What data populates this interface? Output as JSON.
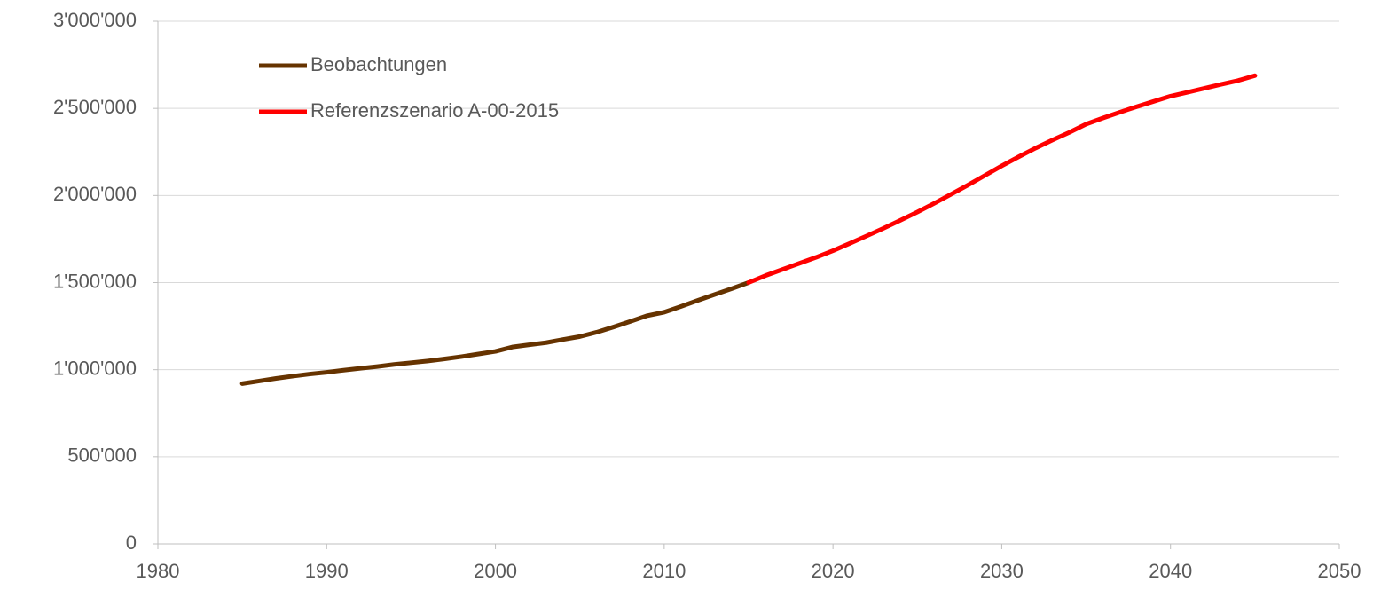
{
  "chart_data": {
    "type": "line",
    "series": [
      {
        "name": "Beobachtungen",
        "color": "#663300",
        "x": [
          1985,
          1986,
          1987,
          1988,
          1989,
          1990,
          1991,
          1992,
          1993,
          1994,
          1995,
          1996,
          1997,
          1998,
          1999,
          2000,
          2001,
          2002,
          2003,
          2004,
          2005,
          2006,
          2007,
          2008,
          2009,
          2010,
          2011,
          2012,
          2013,
          2014,
          2015
        ],
        "values": [
          920000,
          935000,
          950000,
          963000,
          975000,
          985000,
          997000,
          1008000,
          1018000,
          1030000,
          1040000,
          1050000,
          1062000,
          1075000,
          1090000,
          1105000,
          1130000,
          1143000,
          1155000,
          1173000,
          1190000,
          1215000,
          1245000,
          1277000,
          1310000,
          1330000,
          1363000,
          1398000,
          1432000,
          1465000,
          1500000
        ]
      },
      {
        "name": "Referenzszenario A-00-2015",
        "color": "#ff0000",
        "x": [
          2015,
          2016,
          2017,
          2018,
          2019,
          2020,
          2021,
          2022,
          2023,
          2024,
          2025,
          2026,
          2027,
          2028,
          2029,
          2030,
          2031,
          2032,
          2033,
          2034,
          2035,
          2036,
          2037,
          2038,
          2039,
          2040,
          2041,
          2042,
          2043,
          2044,
          2045
        ],
        "values": [
          1500000,
          1540000,
          1575000,
          1610000,
          1645000,
          1683000,
          1725000,
          1768000,
          1812000,
          1858000,
          1905000,
          1955000,
          2007000,
          2060000,
          2115000,
          2170000,
          2222000,
          2272000,
          2318000,
          2362000,
          2410000,
          2445000,
          2478000,
          2510000,
          2540000,
          2570000,
          2592000,
          2615000,
          2638000,
          2660000,
          2688000
        ]
      }
    ],
    "xlim": [
      1980,
      2050
    ],
    "xticks": [
      1980,
      1990,
      2000,
      2010,
      2020,
      2030,
      2040,
      2050
    ],
    "ylim": [
      0,
      3000000
    ],
    "yticks": [
      0,
      {
        "value": 500000,
        "label": "500'000"
      },
      {
        "value": 1000000,
        "label": "1'000'000"
      },
      {
        "value": 1500000,
        "label": "1'500'000"
      },
      {
        "value": 2000000,
        "label": "2'000'000"
      },
      {
        "value": 2500000,
        "label": "2'500'000"
      },
      {
        "value": 3000000,
        "label": "3'000'000"
      }
    ],
    "grid": true,
    "legend": "upper left"
  }
}
